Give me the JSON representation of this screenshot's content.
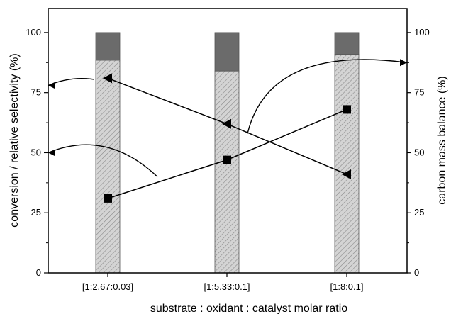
{
  "chart_data": {
    "type": "bar",
    "xlabel": "substrate : oxidant : catalyst molar ratio",
    "ylabel_left": "conversion / relative selectivity (%)",
    "ylabel_right": "carbon mass balance (%)",
    "ylim_left": [
      0,
      110
    ],
    "ylim_right": [
      0,
      110
    ],
    "yticks_left": [
      "0",
      "25",
      "50",
      "75",
      "100"
    ],
    "yticks_right": [
      "0",
      "25",
      "50",
      "75",
      "100"
    ],
    "categories": [
      "[1:2.67:0.03]",
      "[1:5.33:0.1]",
      "[1:8:0.1]"
    ],
    "stacked_bars": {
      "axis": "right",
      "segments": [
        {
          "pattern": "hatched",
          "color": "#cfcfcf",
          "values": [
            88.5,
            84,
            91
          ]
        },
        {
          "pattern": "solid",
          "color": "#6b6b6b",
          "values": [
            11.5,
            16,
            9
          ]
        }
      ]
    },
    "series": [
      {
        "marker": "square",
        "axis": "left",
        "values": [
          31,
          47,
          68
        ]
      },
      {
        "marker": "triangle-left",
        "axis": "left",
        "values": [
          81,
          62,
          41
        ]
      }
    ],
    "grid": false,
    "legend": "none"
  }
}
